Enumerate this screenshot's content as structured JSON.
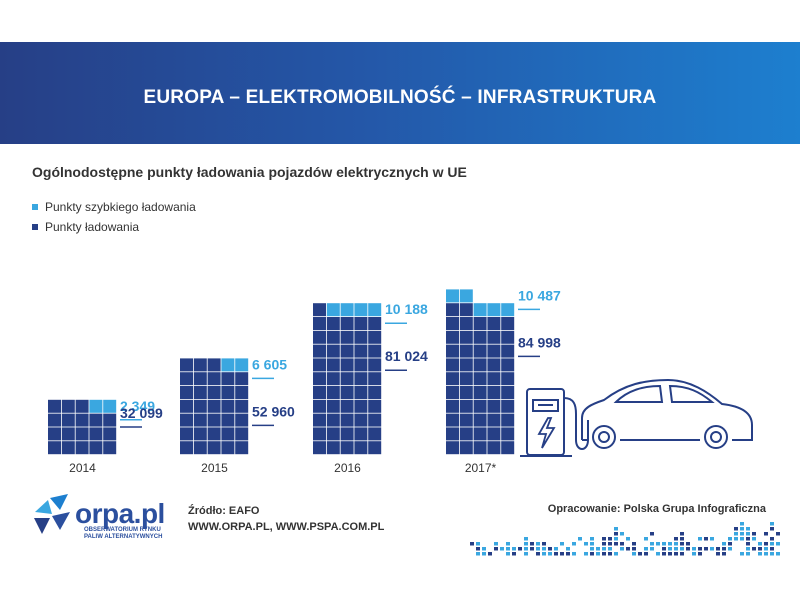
{
  "header": {
    "title": "EUROPA – ELEKTROMOBILNOŚĆ – INFRASTRUKTURA"
  },
  "subtitle": "Ogólnodostępne punkty ładowania pojazdów elektrycznych w UE",
  "legend": [
    {
      "label": "Punkty szybkiego ładowania",
      "color": "#3aa7e0"
    },
    {
      "label": "Punkty ładowania",
      "color": "#263f86"
    }
  ],
  "chart_data": {
    "type": "bar",
    "stacked": true,
    "categories": [
      "2014",
      "2015",
      "2016",
      "2017*"
    ],
    "series": [
      {
        "name": "Punkty ładowania",
        "values": [
          32099,
          52960,
          81024,
          84998
        ],
        "labels": [
          "32 099",
          "52 960",
          "81 024",
          "84 998"
        ],
        "color": "#263f86"
      },
      {
        "name": "Punkty szybkiego ładowania",
        "values": [
          2349,
          6605,
          10188,
          10487
        ],
        "labels": [
          "2 349",
          "6 605",
          "10 188",
          "10 487"
        ],
        "color": "#3aa7e0"
      }
    ],
    "unit_icons": {
      "total_squares": [
        20,
        35,
        55,
        57
      ],
      "fast_squares": [
        2,
        2,
        4,
        5
      ]
    }
  },
  "footer": {
    "logo_text": "orpa.pl",
    "logo_sub": "OBSERWATORIUM RYNKU PALIW ALTERNATYWNYCH",
    "source_label": "Źródło: EAFO",
    "source_urls": "WWW.ORPA.PL, WWW.PSPA.COM.PL",
    "credit_label": "Opracowanie:",
    "credit_name": "Polska Grupa Infograficzna"
  },
  "illustration": {
    "icons": [
      "charging-station-icon",
      "lightning-icon",
      "car-icon"
    ]
  }
}
